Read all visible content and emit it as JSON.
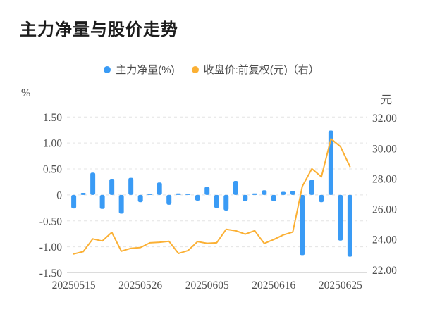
{
  "title": "主力净量与股价走势",
  "legend": {
    "items": [
      {
        "label": "主力净量(%)",
        "color": "#3a9bf5",
        "marker": "circle"
      },
      {
        "label": "收盘价:前复权(元)（右）",
        "color": "#fbb034",
        "marker": "circle"
      }
    ]
  },
  "left_axis": {
    "unit": "%",
    "ticks": [
      "1.50",
      "1.00",
      "0.50",
      "0",
      "-0.50",
      "-1.00",
      "-1.50"
    ],
    "max": 1.5,
    "min": -1.5
  },
  "right_axis": {
    "unit": "元",
    "ticks": [
      "32.00",
      "30.00",
      "28.00",
      "26.00",
      "24.00",
      "22.00"
    ],
    "max": 32.0,
    "min": 22.0
  },
  "x_axis": {
    "visible_tick_labels": [
      "20250515",
      "20250526",
      "20250605",
      "20250616",
      "20250625"
    ],
    "label_interval": 7
  },
  "chart_data": {
    "type": "bar",
    "subtype": "bar+line dual-axis combo",
    "title": "主力净量与股价走势",
    "grid": "horizontal dashed gridlines",
    "legend_position": "top center",
    "x": [
      "20250515",
      "20250516",
      "20250519",
      "20250520",
      "20250521",
      "20250522",
      "20250523",
      "20250526",
      "20250527",
      "20250528",
      "20250529",
      "20250530",
      "20250603",
      "20250604",
      "20250605",
      "20250606",
      "20250609",
      "20250610",
      "20250611",
      "20250612",
      "20250613",
      "20250616",
      "20250617",
      "20250618",
      "20250619",
      "20250620",
      "20250623",
      "20250624",
      "20250625",
      "20250626"
    ],
    "left_ylabel": "%",
    "right_ylabel": "元",
    "left_ylim": [
      -1.5,
      1.5
    ],
    "right_ylim": [
      22.0,
      32.0
    ],
    "series": [
      {
        "name": "主力净量(%)",
        "type": "bar",
        "y_axis": "left",
        "color": "#3a9bf5",
        "values": [
          -0.26,
          0.04,
          0.43,
          -0.27,
          0.31,
          -0.36,
          0.33,
          -0.14,
          0.02,
          0.24,
          -0.19,
          0.03,
          0.01,
          -0.11,
          0.16,
          -0.25,
          -0.3,
          0.27,
          -0.12,
          0.03,
          0.09,
          -0.12,
          0.06,
          0.08,
          -1.16,
          0.29,
          -0.14,
          1.24,
          -0.88,
          -1.19
        ]
      },
      {
        "name": "收盘价:前复权(元)（右）",
        "type": "line",
        "y_axis": "right",
        "color": "#fbb034",
        "values": [
          23.05,
          23.2,
          24.04,
          23.9,
          24.47,
          23.23,
          23.42,
          23.47,
          23.78,
          23.82,
          23.88,
          23.08,
          23.27,
          23.86,
          23.75,
          23.78,
          24.67,
          24.58,
          24.35,
          24.58,
          23.74,
          24.0,
          24.3,
          24.49,
          27.5,
          28.66,
          28.12,
          30.63,
          30.12,
          28.8
        ]
      }
    ]
  },
  "colors": {
    "bar_blue": "#3a9bf5",
    "line_yellow": "#fbb034",
    "grid_line": "#e4e4e4",
    "axis_line": "#dcdcdc",
    "tick_text": "#4d4d4d",
    "title_text": "#1d1d1d",
    "legend_text": "#4c4c4c",
    "background": "#ffffff"
  }
}
